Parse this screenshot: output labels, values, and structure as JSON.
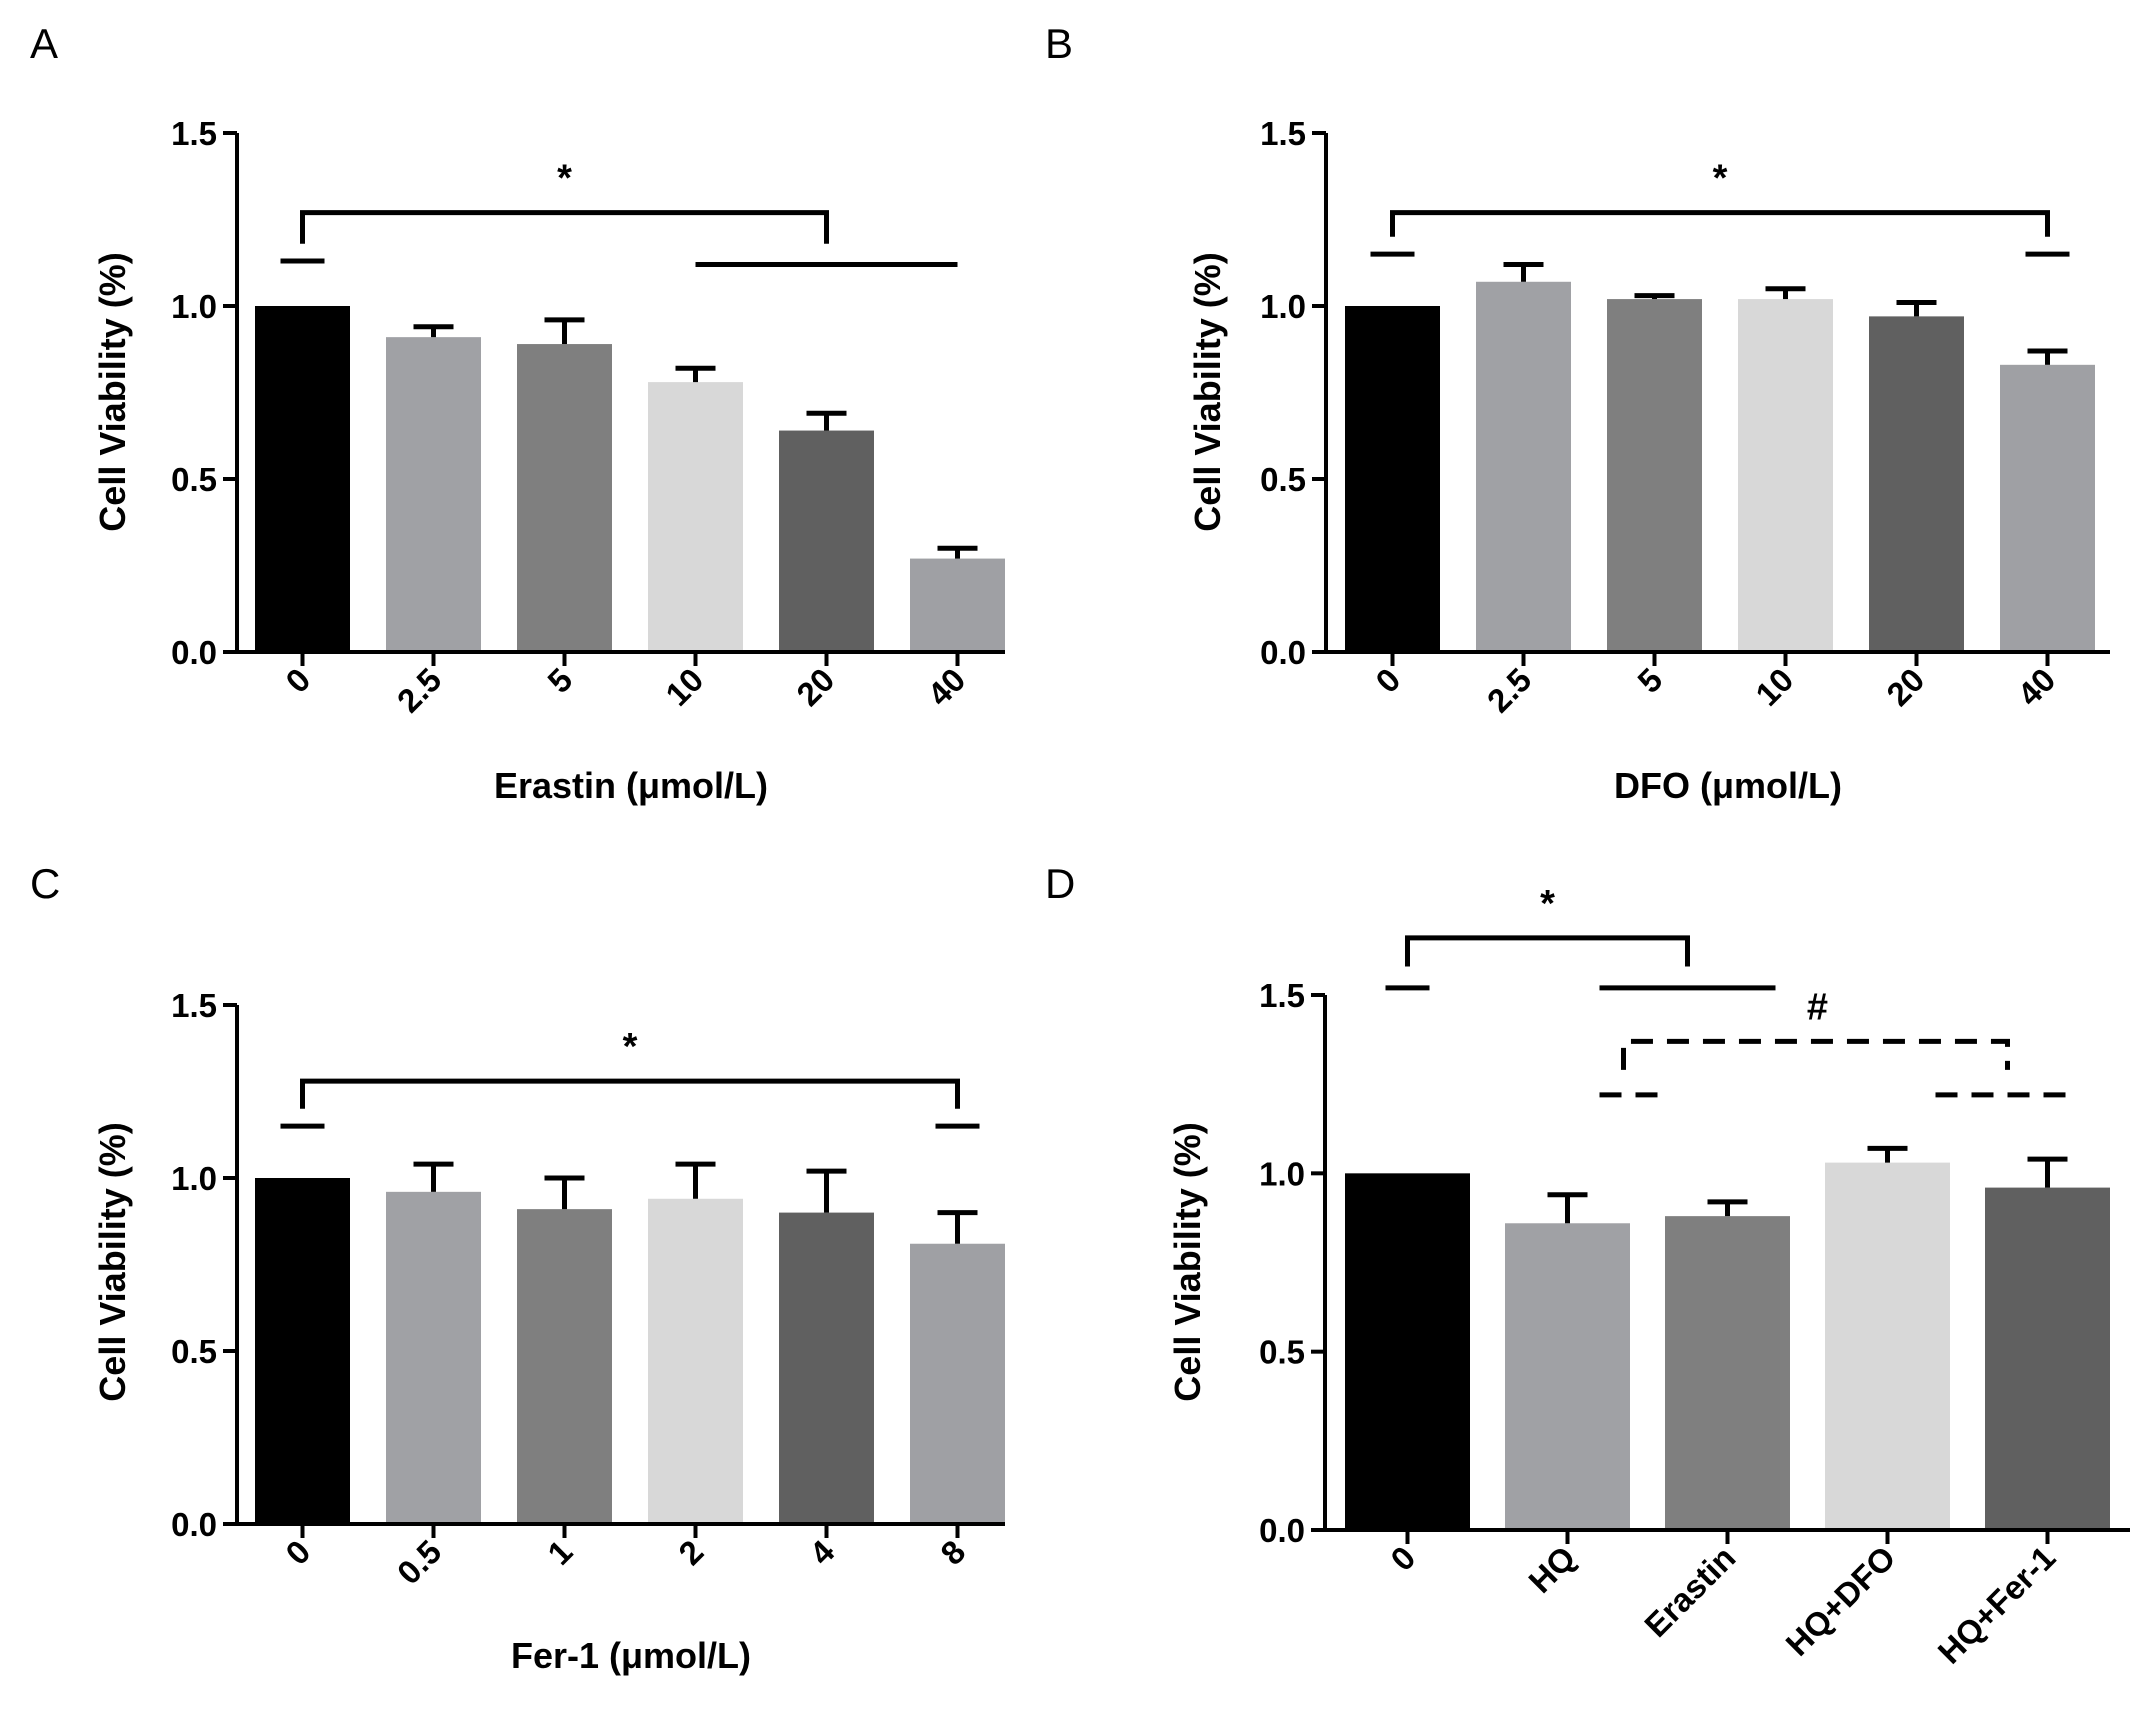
{
  "chart_data": [
    {
      "panel": "A",
      "type": "bar",
      "categories": [
        "0",
        "2.5",
        "5",
        "10",
        "20",
        "40"
      ],
      "values": [
        1.0,
        0.91,
        0.89,
        0.78,
        0.64,
        0.27
      ],
      "errors": [
        0.0,
        0.03,
        0.07,
        0.04,
        0.05,
        0.03
      ],
      "bar_colors": [
        "#000000",
        "#a0a1a5",
        "#7f7f7f",
        "#d8d8d8",
        "#606060",
        "#9fa0a4"
      ],
      "xlabel": "Erastin (μmol/L)",
      "ylabel": "Cell Viability (%)",
      "ylim": [
        0,
        1.5
      ],
      "yticks": [
        "0.0",
        "0.5",
        "1.0",
        "1.5"
      ],
      "significance": [
        {
          "label": "*",
          "from": 0,
          "to": 4,
          "y": 1.27,
          "drop_to": 1.18,
          "style": "solid"
        }
      ],
      "group_lines": [
        {
          "from": 0,
          "to": 0,
          "y": 1.13
        },
        {
          "from": 3,
          "to": 5,
          "y": 1.12
        }
      ]
    },
    {
      "panel": "B",
      "type": "bar",
      "categories": [
        "0",
        "2.5",
        "5",
        "10",
        "20",
        "40"
      ],
      "values": [
        1.0,
        1.07,
        1.02,
        1.02,
        0.97,
        0.83
      ],
      "errors": [
        0.0,
        0.05,
        0.01,
        0.03,
        0.04,
        0.04
      ],
      "bar_colors": [
        "#000000",
        "#a0a1a5",
        "#7f7f7f",
        "#d8d8d8",
        "#606060",
        "#9fa0a4"
      ],
      "xlabel": "DFO (μmol/L)",
      "ylabel": "Cell Viability (%)",
      "ylim": [
        0,
        1.5
      ],
      "yticks": [
        "0.0",
        "0.5",
        "1.0",
        "1.5"
      ],
      "significance": [
        {
          "label": "*",
          "from": 0,
          "to": 5,
          "y": 1.27,
          "drop_to": 1.2,
          "style": "solid"
        }
      ],
      "group_lines": [
        {
          "from": 0,
          "to": 0,
          "y": 1.15
        },
        {
          "from": 5,
          "to": 5,
          "y": 1.15
        }
      ]
    },
    {
      "panel": "C",
      "type": "bar",
      "categories": [
        "0",
        "0.5",
        "1",
        "2",
        "4",
        "8"
      ],
      "values": [
        1.0,
        0.96,
        0.91,
        0.94,
        0.9,
        0.81
      ],
      "errors": [
        0.0,
        0.08,
        0.09,
        0.1,
        0.12,
        0.09
      ],
      "bar_colors": [
        "#000000",
        "#a0a1a5",
        "#7f7f7f",
        "#d8d8d8",
        "#606060",
        "#9fa0a4"
      ],
      "xlabel": "Fer-1 (μmol/L)",
      "ylabel": "Cell Viability (%)",
      "ylim": [
        0,
        1.5
      ],
      "yticks": [
        "0.0",
        "0.5",
        "1.0",
        "1.5"
      ],
      "significance": [
        {
          "label": "*",
          "from": 0,
          "to": 5,
          "y": 1.28,
          "drop_to": 1.2,
          "style": "solid"
        }
      ],
      "group_lines": [
        {
          "from": 0,
          "to": 0,
          "y": 1.15
        },
        {
          "from": 5,
          "to": 5,
          "y": 1.15
        }
      ]
    },
    {
      "panel": "D",
      "type": "bar",
      "categories": [
        "0",
        "HQ",
        "Erastin",
        "HQ+DFO",
        "HQ+Fer-1"
      ],
      "values": [
        1.0,
        0.86,
        0.88,
        1.03,
        0.96
      ],
      "errors": [
        0.0,
        0.08,
        0.04,
        0.04,
        0.08
      ],
      "bar_colors": [
        "#000000",
        "#a0a1a5",
        "#7f7f7f",
        "#d8d8d8",
        "#606060"
      ],
      "xlabel": "",
      "ylabel": "Cell Viability (%)",
      "ylim": [
        0,
        1.5
      ],
      "yticks": [
        "0.0",
        "0.5",
        "1.0",
        "1.5"
      ],
      "significance": [
        {
          "label": "*",
          "from": 0,
          "to": 1.75,
          "y": 1.66,
          "drop_to": 1.58,
          "style": "solid"
        },
        {
          "label": "#",
          "from": 1.35,
          "to": 3.75,
          "y": 1.37,
          "drop_to": 1.29,
          "style": "dashed"
        }
      ],
      "group_lines": [
        {
          "from": 0,
          "to": 0,
          "y": 1.52
        },
        {
          "from": 1.2,
          "to": 2.3,
          "y": 1.52
        },
        {
          "from": 1.2,
          "to": 1.6,
          "y": 1.22,
          "style": "dashed"
        },
        {
          "from": 3.3,
          "to": 4.2,
          "y": 1.22,
          "style": "dashed"
        }
      ]
    }
  ]
}
